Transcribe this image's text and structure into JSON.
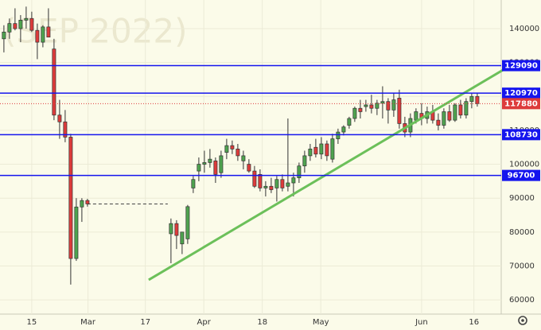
{
  "chart_data": {
    "type": "candlestick",
    "watermark": "(SEP 2022)",
    "x": [
      0,
      1,
      2,
      3,
      4,
      5,
      6,
      7,
      8,
      9,
      10,
      11,
      12,
      13,
      14,
      15,
      30,
      31,
      32,
      33,
      34,
      35,
      36,
      37,
      38,
      39,
      40,
      41,
      42,
      43,
      44,
      45,
      46,
      47,
      48,
      49,
      50,
      51,
      52,
      53,
      54,
      55,
      56,
      57,
      58,
      59,
      60,
      61,
      62,
      63,
      64,
      65,
      66,
      67,
      68,
      69,
      70,
      71,
      72,
      73,
      74,
      75,
      76,
      77,
      78,
      79,
      80,
      81,
      82,
      83,
      84,
      85
    ],
    "open": [
      137000,
      139000,
      141500,
      140000,
      142500,
      143000,
      139500,
      136000,
      140500,
      134000,
      114500,
      112500,
      108000,
      72200,
      87400,
      89300,
      79500,
      82500,
      76500,
      78000,
      93000,
      98000,
      100000,
      100500,
      101000,
      97500,
      103500,
      105500,
      104500,
      101000,
      100000,
      98000,
      97000,
      93000,
      93500,
      93000,
      95500,
      93500,
      94500,
      96000,
      99500,
      102500,
      105000,
      103000,
      106000,
      101500,
      107500,
      109500,
      111500,
      113500,
      116500,
      117000,
      117500,
      116500,
      118000,
      118500,
      116000,
      119500,
      112000,
      109500,
      113000,
      115000,
      113500,
      115500,
      113000,
      111500,
      115500,
      113000,
      117500,
      114500,
      118500,
      120000
    ],
    "high": [
      141000,
      143000,
      146000,
      144000,
      146500,
      145000,
      141500,
      141000,
      146000,
      137000,
      119000,
      116000,
      109000,
      90000,
      90000,
      89800,
      84000,
      83500,
      80000,
      88000,
      96500,
      102000,
      104000,
      104500,
      102000,
      104000,
      107500,
      107000,
      106000,
      104000,
      101500,
      99500,
      98500,
      95000,
      96000,
      96500,
      97000,
      113500,
      97500,
      100500,
      104000,
      106000,
      107500,
      108000,
      107000,
      109000,
      110500,
      111500,
      114000,
      117000,
      119000,
      119000,
      120500,
      119000,
      123000,
      119500,
      121000,
      122000,
      114000,
      115000,
      116500,
      118000,
      117000,
      117500,
      115000,
      116500,
      117500,
      118000,
      119000,
      119500,
      121000,
      121000
    ],
    "low": [
      133000,
      137000,
      139500,
      136000,
      140000,
      139000,
      131000,
      134500,
      138000,
      113000,
      107500,
      106500,
      64500,
      71500,
      83000,
      87500,
      70800,
      75000,
      73500,
      76500,
      91500,
      95000,
      97500,
      99000,
      94500,
      96000,
      101500,
      103000,
      101000,
      98500,
      97500,
      93000,
      92000,
      90500,
      91500,
      89000,
      92000,
      92000,
      90500,
      94500,
      97500,
      101000,
      102000,
      101500,
      101000,
      100500,
      106000,
      108500,
      110500,
      112500,
      113500,
      115500,
      115000,
      114500,
      113500,
      112000,
      114000,
      110500,
      108000,
      108000,
      112000,
      111500,
      112000,
      112000,
      110000,
      110500,
      112500,
      112500,
      113500,
      113500,
      116500,
      117000
    ],
    "close": [
      139000,
      141500,
      140000,
      142500,
      143000,
      139500,
      136000,
      140500,
      137500,
      114500,
      112500,
      108000,
      72200,
      87400,
      89300,
      88300,
      82500,
      79000,
      80000,
      87500,
      95500,
      100000,
      100500,
      101500,
      97000,
      102500,
      105500,
      104500,
      102500,
      102500,
      98000,
      93500,
      93000,
      93500,
      92500,
      95500,
      93000,
      94500,
      96000,
      99500,
      102500,
      104500,
      103000,
      106000,
      102500,
      107500,
      109500,
      111000,
      113500,
      116500,
      115500,
      117500,
      116500,
      118000,
      118500,
      116000,
      119000,
      112000,
      109500,
      113500,
      115500,
      113500,
      115500,
      113000,
      111500,
      115500,
      113000,
      117500,
      114500,
      118500,
      120000,
      117880
    ],
    "up_color": "#4fa34f",
    "down_color": "#dd3b3b",
    "xlim": [
      -0.7,
      89.3
    ],
    "ylim": [
      55800,
      148450
    ],
    "xticks": [
      {
        "value": 5,
        "label": "15"
      },
      {
        "value": 15.1,
        "label": "Mar"
      },
      {
        "value": 25.4,
        "label": "17"
      },
      {
        "value": 35.9,
        "label": "Apr"
      },
      {
        "value": 46.4,
        "label": "18"
      },
      {
        "value": 56.9,
        "label": "May"
      },
      {
        "value": 75,
        "label": "Jun"
      },
      {
        "value": 84.4,
        "label": "16"
      }
    ],
    "yticks": [
      60000,
      70000,
      80000,
      90000,
      100000,
      110000,
      120000,
      130000,
      140000
    ],
    "grid": true,
    "levels": [
      129090,
      120970,
      108730,
      96700
    ],
    "level_color": "#1515ee",
    "last_price": 117880,
    "trendline": {
      "x": [
        26,
        89.6
      ],
      "y": [
        65900,
        127800
      ],
      "color": "#6cc05a"
    }
  }
}
